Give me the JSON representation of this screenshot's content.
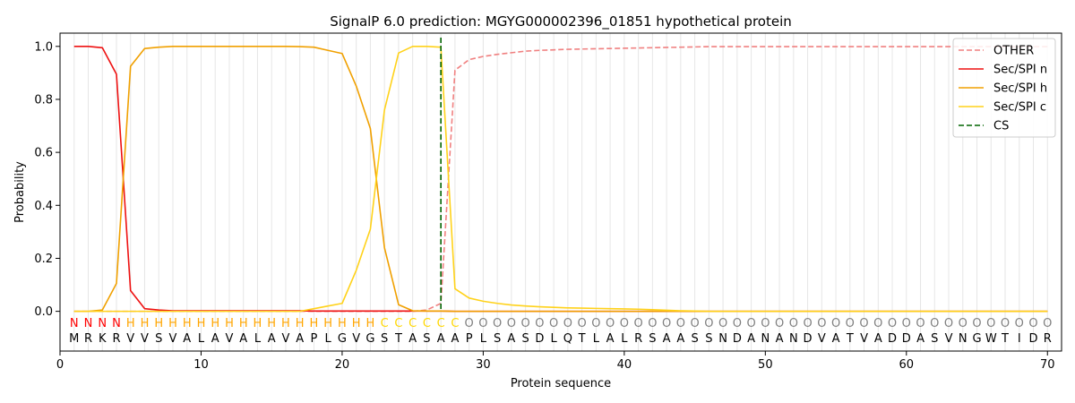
{
  "chart_data": {
    "type": "line",
    "title": "SignalP 6.0 prediction: MGYG000002396_01851 hypothetical protein",
    "xlabel": "Protein sequence",
    "ylabel": "Probability",
    "xlim": [
      0,
      71
    ],
    "ylim": [
      -0.15,
      1.05
    ],
    "xticks": [
      0,
      10,
      20,
      30,
      40,
      50,
      60,
      70
    ],
    "yticks": [
      0.0,
      0.2,
      0.4,
      0.6,
      0.8,
      1.0
    ],
    "ytick_labels": [
      "0.0",
      "0.2",
      "0.4",
      "0.6",
      "0.8",
      "1.0"
    ],
    "grid": "vertical lines at each residue",
    "legend_position": "top-right",
    "sequence": "MRKRVVSVALAVALAVAPLGVGSTASAAPLSASDLQTLALRSAASSNDANANDVATVADDASVNGWTIDR",
    "labels": "NNNNHHHHHHHHHHHHHHHHHHCCCCCCOOOOOOOOOOOOOOOOOOOOOOOOOOOOOOOOOOOOOOOOOOO",
    "label_colors": {
      "N": "#ff0000",
      "H": "#ffa500",
      "C": "#ffd700",
      "O": "#808080"
    },
    "series": [
      {
        "name": "OTHER",
        "color": "#f08080",
        "dash": true,
        "values": [
          0,
          0,
          0,
          0,
          0,
          0,
          0,
          0,
          0,
          0,
          0,
          0,
          0,
          0,
          0,
          0,
          0,
          0,
          0,
          0,
          0,
          0,
          0,
          0,
          0,
          0.005,
          0.03,
          0.91,
          0.95,
          0.962,
          0.97,
          0.976,
          0.982,
          0.985,
          0.987,
          0.989,
          0.99,
          0.991,
          0.992,
          0.993,
          0.994,
          0.995,
          0.996,
          0.997,
          0.998,
          0.999,
          0.999,
          0.999,
          0.999,
          0.999,
          0.999,
          0.999,
          0.999,
          0.999,
          0.999,
          0.999,
          0.999,
          0.999,
          0.999,
          0.999,
          0.999,
          0.999,
          0.999,
          0.999,
          0.999,
          0.999,
          0.999,
          0.999,
          0.999,
          0.999
        ]
      },
      {
        "name": "Sec/SPI n",
        "color": "#ee1111",
        "dash": false,
        "values": [
          1.0,
          1.0,
          0.995,
          0.895,
          0.078,
          0.01,
          0.005,
          0.002,
          0.002,
          0.002,
          0.002,
          0.002,
          0.002,
          0.002,
          0.002,
          0.002,
          0.002,
          0.001,
          0.001,
          0.001,
          0.001,
          0.001,
          0.001,
          0.001,
          0.001,
          0.001,
          0.001,
          0,
          0,
          0,
          0,
          0,
          0,
          0,
          0,
          0,
          0,
          0,
          0,
          0,
          0,
          0,
          0,
          0,
          0,
          0,
          0,
          0,
          0,
          0,
          0,
          0,
          0,
          0,
          0,
          0,
          0,
          0,
          0,
          0,
          0,
          0,
          0,
          0,
          0,
          0,
          0,
          0,
          0,
          0
        ]
      },
      {
        "name": "Sec/SPI h",
        "color": "#f0a000",
        "dash": false,
        "values": [
          0,
          0,
          0.005,
          0.105,
          0.925,
          0.992,
          0.997,
          1.0,
          1.0,
          1.0,
          1.0,
          1.0,
          1.0,
          1.0,
          1.0,
          1.0,
          0.999,
          0.997,
          0.985,
          0.973,
          0.85,
          0.69,
          0.24,
          0.025,
          0.002,
          0.001,
          0.001,
          0,
          0,
          0,
          0,
          0,
          0,
          0,
          0,
          0,
          0,
          0,
          0,
          0,
          0,
          0,
          0,
          0,
          0,
          0,
          0,
          0,
          0,
          0,
          0,
          0,
          0,
          0,
          0,
          0,
          0,
          0,
          0,
          0,
          0,
          0,
          0,
          0,
          0,
          0,
          0,
          0,
          0,
          0
        ]
      },
      {
        "name": "Sec/SPI c",
        "color": "#ffd21a",
        "dash": false,
        "values": [
          0,
          0,
          0,
          0,
          0,
          0,
          0,
          0,
          0,
          0,
          0,
          0,
          0,
          0,
          0,
          0,
          0,
          0.01,
          0.02,
          0.03,
          0.155,
          0.31,
          0.76,
          0.975,
          1.0,
          1.0,
          0.997,
          0.085,
          0.05,
          0.038,
          0.03,
          0.024,
          0.02,
          0.017,
          0.015,
          0.013,
          0.012,
          0.011,
          0.01,
          0.009,
          0.008,
          0.006,
          0.004,
          0.002,
          0.001,
          0,
          0,
          0,
          0,
          0,
          0,
          0,
          0,
          0,
          0,
          0,
          0,
          0,
          0,
          0,
          0,
          0,
          0,
          0,
          0,
          0,
          0,
          0,
          0,
          0
        ]
      }
    ],
    "cs": {
      "name": "CS",
      "x": 27,
      "color": "#006400"
    }
  }
}
